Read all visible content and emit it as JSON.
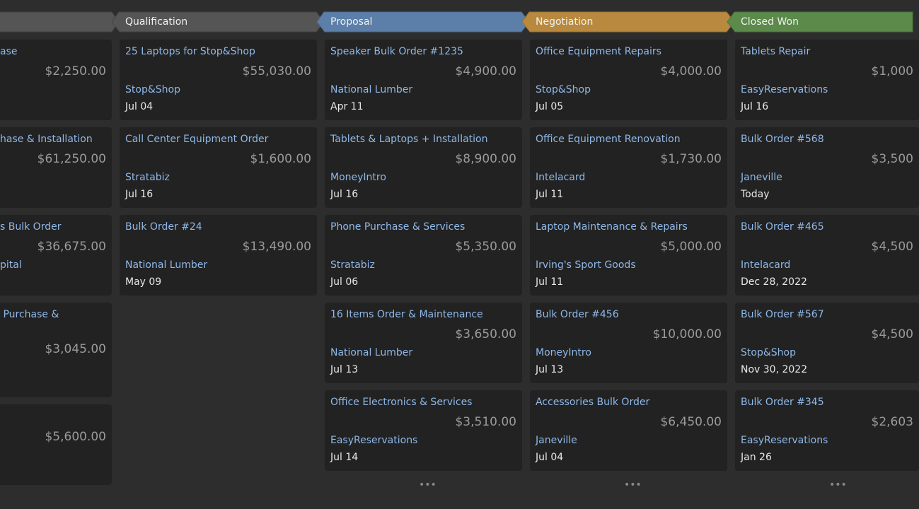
{
  "columns": [
    {
      "cards": [
        {
          "title": "ase",
          "amount": "$2,250.00"
        },
        {
          "title": "hase & Installation",
          "amount": "$61,250.00"
        },
        {
          "title": "s Bulk Order",
          "amount": "$36,675.00",
          "company": "pital"
        },
        {
          "title": " Purchase &",
          "amount": "$3,045.00"
        },
        {
          "amount": "$5,600.00"
        }
      ]
    },
    {
      "header": "Qualification",
      "cards": [
        {
          "title": "25 Laptops for Stop&Shop",
          "amount": "$55,030.00",
          "company": "Stop&Shop",
          "date": "Jul 04"
        },
        {
          "title": "Call Center Equipment Order",
          "amount": "$1,600.00",
          "company": "Stratabiz",
          "date": "Jul 16"
        },
        {
          "title": "Bulk Order #24",
          "amount": "$13,490.00",
          "company": "National Lumber",
          "date": "May 09"
        }
      ]
    },
    {
      "header": "Proposal",
      "cards": [
        {
          "title": "Speaker Bulk Order #1235",
          "amount": "$4,900.00",
          "company": "National Lumber",
          "date": "Apr 11"
        },
        {
          "title": "Tablets & Laptops + Installation",
          "amount": "$8,900.00",
          "company": "MoneyIntro",
          "date": "Jul 16"
        },
        {
          "title": "Phone Purchase & Services",
          "amount": "$5,350.00",
          "company": "Stratabiz",
          "date": "Jul 06"
        },
        {
          "title": "16 Items Order & Maintenance",
          "amount": "$3,650.00",
          "company": "National Lumber",
          "date": "Jul 13"
        },
        {
          "title": "Office Electronics & Services",
          "amount": "$3,510.00",
          "company": "EasyReservations",
          "date": "Jul 14"
        }
      ]
    },
    {
      "header": "Negotiation",
      "cards": [
        {
          "title": "Office Equipment Repairs",
          "amount": "$4,000.00",
          "company": "Stop&Shop",
          "date": "Jul 05"
        },
        {
          "title": "Office Equipment Renovation",
          "amount": "$1,730.00",
          "company": "Intelacard",
          "date": "Jul 11"
        },
        {
          "title": "Laptop Maintenance & Repairs",
          "amount": "$5,000.00",
          "company": "Irving's Sport Goods",
          "date": "Jul 11"
        },
        {
          "title": "Bulk Order #456",
          "amount": "$10,000.00",
          "company": "MoneyIntro",
          "date": "Jul 13"
        },
        {
          "title": "Accessories Bulk Order",
          "amount": "$6,450.00",
          "company": "Janeville",
          "date": "Jul 04"
        }
      ]
    },
    {
      "header": "Closed Won",
      "cards": [
        {
          "title": "Tablets Repair",
          "amount": "$1,000",
          "company": "EasyReservations",
          "date": "Jul 16"
        },
        {
          "title": "Bulk Order #568",
          "amount": "$3,500",
          "company": "Janeville",
          "date": "Today"
        },
        {
          "title": "Bulk Order #465",
          "amount": "$4,500",
          "company": "Intelacard",
          "date": "Dec 28, 2022"
        },
        {
          "title": "Bulk Order #567",
          "amount": "$4,500",
          "company": "Stop&Shop",
          "date": "Nov 30, 2022"
        },
        {
          "title": "Bulk Order #345",
          "amount": "$2,603",
          "company": "EasyReservations",
          "date": "Jan 26"
        }
      ]
    }
  ]
}
